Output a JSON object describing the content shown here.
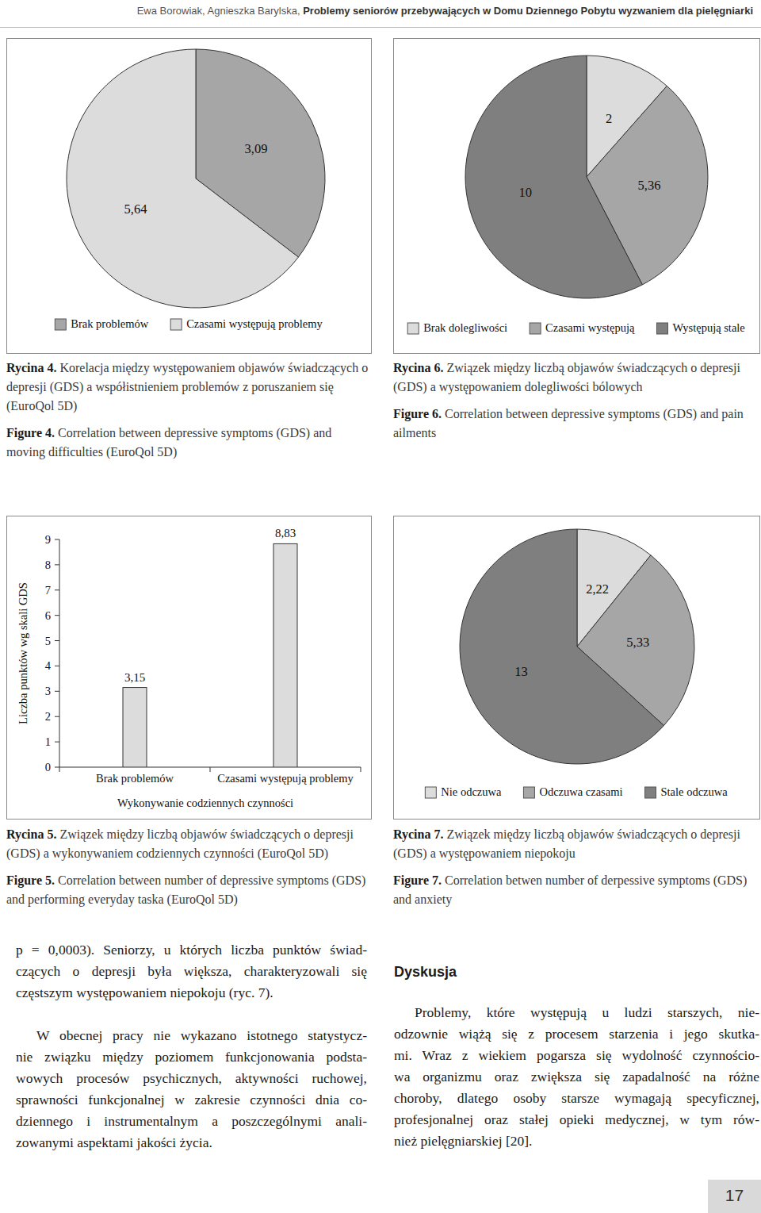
{
  "header": {
    "authors": "Ewa Borowiak, Agnieszka Barylska,",
    "title": "Problemy seniorów przebywających w Domu Dziennego Pobytu wyzwaniem dla pielęgniarki"
  },
  "chart_data": [
    {
      "type": "pie",
      "categories": [
        "Brak problemów",
        "Czasami występują problemy"
      ],
      "values": [
        3.09,
        5.64
      ],
      "value_labels": [
        "3,09",
        "5,64"
      ],
      "colors": [
        "#a6a6a6",
        "#dcdcdc"
      ],
      "legend": "bottom",
      "data_labels": true
    },
    {
      "type": "pie",
      "categories": [
        "Brak dolegliwości",
        "Czasami występują",
        "Występują stale"
      ],
      "values": [
        2,
        5.36,
        10
      ],
      "value_labels": [
        "2",
        "5,36",
        "10"
      ],
      "colors": [
        "#dcdcdc",
        "#a6a6a6",
        "#7f7f7f"
      ],
      "legend": "bottom",
      "data_labels": true
    },
    {
      "type": "bar",
      "xlabel": "Wykonywanie codziennych czynności",
      "ylabel": "Liczba punktów wg skali GDS",
      "categories": [
        "Brak problemów",
        "Czasami występują problemy"
      ],
      "values": [
        3.15,
        8.83
      ],
      "value_labels": [
        "3,15",
        "8,83"
      ],
      "color": "#dcdcdc",
      "ylim": [
        0,
        9
      ],
      "yticks": [
        0,
        1,
        2,
        3,
        4,
        5,
        6,
        7,
        8,
        9
      ],
      "grid": false,
      "data_labels": true
    },
    {
      "type": "pie",
      "categories": [
        "Nie odczuwa",
        "Odczuwa czasami",
        "Stale odczuwa"
      ],
      "values": [
        2.22,
        5.33,
        13
      ],
      "value_labels": [
        "2,22",
        "5,33",
        "13"
      ],
      "colors": [
        "#dcdcdc",
        "#a6a6a6",
        "#7f7f7f"
      ],
      "legend": "bottom",
      "data_labels": true
    }
  ],
  "captions": [
    {
      "label": "Rycina 4.",
      "text": "Korelacja między występowaniem objawów świadczących o depresji (GDS) a współistnieniem problemów z poruszaniem się (EuroQol 5D)",
      "label_en": "Figure 4.",
      "text_en": "Correlation between depressive symptoms (GDS) and moving difficulties (EuroQol 5D)"
    },
    {
      "label": "Rycina 6.",
      "text": "Związek między liczbą objawów świadczących o depresji (GDS) a występowaniem dolegliwości bólowych",
      "label_en": "Figure 6.",
      "text_en": "Correlation between depressive symptoms (GDS) and pain ailments"
    },
    {
      "label": "Rycina 5.",
      "text": "Związek między liczbą objawów świadczących o depresji (GDS) a wykonywaniem codziennych czynności (EuroQol 5D)",
      "label_en": "Figure 5.",
      "text_en": "Correlation between number of depressive symptoms (GDS) and performing everyday taska (EuroQol 5D)"
    },
    {
      "label": "Rycina 7.",
      "text": "Związek między liczbą objawów świadczących o depresji (GDS) a występowaniem niepokoju",
      "label_en": "Figure 7.",
      "text_en": "Correlation betwen number of derpessive symptoms (GDS) and anxiety"
    }
  ],
  "body": {
    "left": [
      {
        "lines": [
          "p = 0,0003). Seniorzy, u których liczba punktów świad-",
          "czących o depresji była większa, charakteryzowali się",
          "częstszym występowaniem niepokoju (ryc. 7)."
        ]
      },
      {
        "lines": [
          "W obecnej pracy nie wykazano istotnego statystycz-",
          "nie związku między poziomem funkcjonowania podsta-",
          "wowych procesów psychicznych, aktywności ruchowej,",
          "sprawności funkcjonalnej w zakresie czynności dnia co-",
          "dziennego i instrumentalnym a poszczególnymi anali-",
          "zowanymi aspektami jakości życia."
        ]
      }
    ],
    "right": {
      "heading": "Dyskusja",
      "paragraphs": [
        {
          "lines": [
            "Problemy, które występują u ludzi starszych, nie-",
            "odzownie wiążą się z procesem starzenia i jego skutka-",
            "mi. Wraz z wiekiem pogarsza się wydolność czynnościo-",
            "wa organizmu oraz zwiększa się zapadalność na różne",
            "choroby, dlatego osoby starsze wymagają specyficznej,",
            "profesjonalnej oraz stałej opieki medycznej, w tym rów-",
            "nież pielęgniarskiej [20]."
          ]
        }
      ]
    }
  },
  "page_number": 17
}
